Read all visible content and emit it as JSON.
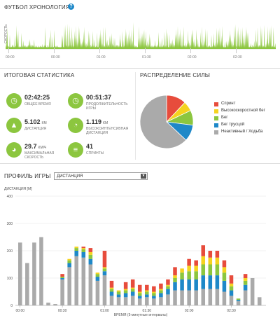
{
  "timeline": {
    "title": "ФУТБОЛ ХРОНОЛОГИЯ",
    "help": "?",
    "ylabel": "СКОРОСТЬ",
    "ticks": [
      "00:00",
      "00:30",
      "01:00",
      "01:30",
      "02:00",
      "02:30"
    ],
    "color": "#8cc63f"
  },
  "summary": {
    "title": "ИТОГОВАЯ СТАТИСТИКА",
    "stats": [
      {
        "value": "02:42:25",
        "unit": "",
        "label": "ОБЩЕЕ ВРЕМЯ",
        "icon": "clock-icon",
        "glyph": "◷"
      },
      {
        "value": "00:51:37",
        "unit": "",
        "label": "ПРОДОЛЖИТЕЛЬНОСТЬ ИГРЫ",
        "icon": "timer-icon",
        "glyph": "◷"
      },
      {
        "value": "5.102",
        "unit": "КМ",
        "label": "ДИСТАНЦИЯ",
        "icon": "distance-icon",
        "glyph": "▲"
      },
      {
        "value": "1.119",
        "unit": "КМ",
        "label": "ВЫСОКОИНТЕНСИВНАЯ ДИСТАНЦИЯ",
        "icon": "intensity-icon",
        "glyph": "◔"
      },
      {
        "value": "29.7",
        "unit": "КМ/Ч",
        "label": "МАКСИМАЛЬНАЯ СКОРОСТЬ",
        "icon": "speed-icon",
        "glyph": "◕"
      },
      {
        "value": "41",
        "unit": "",
        "label": "СПРИНТЫ",
        "icon": "sprint-icon",
        "glyph": "≡"
      }
    ]
  },
  "distribution": {
    "title": "РАСПРЕДЕЛЕНИЕ СИЛЫ",
    "slices": [
      {
        "label": "Спринт",
        "value": 12,
        "color": "#e74c3c"
      },
      {
        "label": "Высокоскоростной бег",
        "value": 6,
        "color": "#f5d31f"
      },
      {
        "label": "Бег",
        "value": 9,
        "color": "#8cc63f"
      },
      {
        "label": "Бег трусцой",
        "value": 10,
        "color": "#1e88c8"
      },
      {
        "label": "Неактивный / Ходьба",
        "value": 63,
        "color": "#aaaaaa"
      }
    ]
  },
  "profile": {
    "title": "ПРОФИЛЬ ИГРЫ",
    "select_value": "ДИСТАНЦИЯ",
    "ylabel": "ДИСТАНЦИЯ [M]",
    "xlabel": "ВРЕМЯ (5-минутные интервалы)"
  },
  "chart_data": {
    "type": "bar",
    "stacked": true,
    "ylabel": "ДИСТАНЦИЯ [M]",
    "xlabel": "ВРЕМЯ (5-минутные интервалы)",
    "ylim": [
      0,
      400
    ],
    "yticks": [
      0,
      100,
      200,
      300,
      400
    ],
    "xticks": [
      {
        "label": "00:00",
        "i": 0
      },
      {
        "label": "00:30",
        "i": 6
      },
      {
        "label": "01:00",
        "i": 12
      },
      {
        "label": "01:30",
        "i": 18
      },
      {
        "label": "02:00",
        "i": 24
      },
      {
        "label": "02:30",
        "i": 30
      }
    ],
    "series": [
      {
        "name": "Неактивный / Ходьба",
        "color": "#aaaaaa",
        "values": [
          230,
          155,
          230,
          250,
          10,
          5,
          95,
          140,
          180,
          175,
          150,
          90,
          110,
          35,
          30,
          30,
          35,
          25,
          30,
          25,
          30,
          40,
          55,
          55,
          55,
          55,
          60,
          60,
          60,
          50,
          35,
          15,
          55,
          100,
          30
        ]
      },
      {
        "name": "Бег трусцой",
        "color": "#1e88c8",
        "values": [
          0,
          0,
          0,
          0,
          0,
          0,
          5,
          15,
          20,
          20,
          20,
          15,
          15,
          15,
          10,
          15,
          15,
          10,
          10,
          10,
          15,
          20,
          30,
          40,
          40,
          40,
          50,
          50,
          50,
          40,
          20,
          5,
          20,
          0,
          0
        ]
      },
      {
        "name": "Бег",
        "color": "#8cc63f",
        "values": [
          0,
          0,
          0,
          0,
          0,
          0,
          5,
          10,
          10,
          10,
          15,
          10,
          10,
          10,
          10,
          10,
          10,
          10,
          10,
          10,
          10,
          10,
          15,
          25,
          30,
          30,
          40,
          40,
          40,
          30,
          15,
          5,
          15,
          0,
          0
        ]
      },
      {
        "name": "Высокоскоростной бег",
        "color": "#f5d31f",
        "values": [
          0,
          0,
          0,
          0,
          0,
          0,
          0,
          5,
          5,
          5,
          10,
          5,
          5,
          5,
          5,
          5,
          5,
          5,
          5,
          5,
          5,
          5,
          10,
          15,
          20,
          20,
          30,
          25,
          25,
          20,
          10,
          0,
          10,
          0,
          0
        ]
      },
      {
        "name": "Спринт",
        "color": "#e74c3c",
        "values": [
          0,
          0,
          0,
          0,
          0,
          0,
          10,
          0,
          0,
          5,
          15,
          0,
          60,
          25,
          0,
          25,
          30,
          25,
          20,
          20,
          20,
          20,
          30,
          0,
          25,
          20,
          40,
          25,
          25,
          25,
          30,
          0,
          15,
          0,
          0
        ]
      }
    ]
  }
}
